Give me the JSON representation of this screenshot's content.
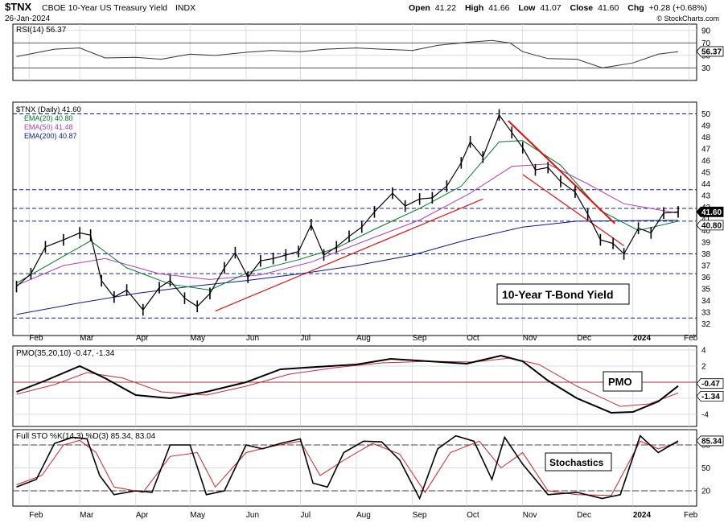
{
  "header": {
    "symbol": "$TNX",
    "name": "CBOE 10-Year US Treasury Yield",
    "exchange": "INDX",
    "date": "26-Jan-2024",
    "open_label": "Open",
    "open": "41.22",
    "high_label": "High",
    "high": "41.66",
    "low_label": "Low",
    "low": "41.07",
    "close_label": "Close",
    "close": "41.60",
    "chg_label": "Chg",
    "chg": "+0.28 (+0.68%)",
    "copyright": "© StockCharts.com"
  },
  "colors": {
    "price": "#000000",
    "ema20": "#007a1f",
    "ema50": "#b040b0",
    "ema200": "#0a1a8a",
    "trend": "#e01010",
    "pmo": "#000000",
    "pmo_signal": "#c0303a",
    "sto_k": "#000000",
    "sto_d": "#d02020",
    "grid": "#c8cfe6"
  },
  "annotations": {
    "main": "10-Year T-Bond Yield",
    "pmo": "PMO",
    "sto": "Stochastics"
  },
  "x_axis": {
    "labels": [
      "Feb",
      "Mar",
      "Apr",
      "May",
      "Jun",
      "Jul",
      "Aug",
      "Sep",
      "Oct",
      "Nov",
      "Dec",
      "2024",
      "Feb"
    ]
  },
  "chart_data": [
    {
      "type": "line",
      "panel": "rsi",
      "legend": "RSI(14) 56.37",
      "value_tag": "56.37",
      "ylim": [
        10,
        100
      ],
      "ticks": [
        90,
        70,
        50,
        30
      ],
      "reference_lines": [
        70,
        30
      ],
      "x": [
        "2023-01-25",
        "2023-02-15",
        "2023-03-01",
        "2023-03-15",
        "2023-04-01",
        "2023-04-15",
        "2023-05-01",
        "2023-05-15",
        "2023-06-01",
        "2023-06-15",
        "2023-07-01",
        "2023-07-15",
        "2023-08-01",
        "2023-08-15",
        "2023-09-01",
        "2023-09-15",
        "2023-10-01",
        "2023-10-15",
        "2023-10-25",
        "2023-11-01",
        "2023-11-15",
        "2023-12-01",
        "2023-12-15",
        "2024-01-01",
        "2024-01-15",
        "2024-01-26"
      ],
      "values": [
        48,
        60,
        62,
        46,
        47,
        44,
        52,
        50,
        55,
        58,
        56,
        60,
        62,
        60,
        58,
        66,
        71,
        74,
        70,
        56,
        45,
        44,
        30,
        38,
        52,
        56
      ]
    },
    {
      "type": "line",
      "panel": "price",
      "legend": [
        "$TNX (Daily) 41.60",
        "EMA(20) 40.80",
        "EMA(50) 41.48",
        "EMA(200) 40.87"
      ],
      "value_tags": [
        "41.60",
        "40.80"
      ],
      "ylim": [
        31,
        51
      ],
      "ticks": [
        50,
        49,
        48,
        47,
        46,
        45,
        44,
        43,
        42,
        41,
        40,
        39,
        38,
        37,
        36,
        35,
        34,
        33,
        32
      ],
      "horizontal_lines": [
        50,
        43.5,
        41.9,
        40.8,
        38,
        36.3,
        32.5
      ],
      "series": [
        {
          "name": "$TNX (Daily) 41.60",
          "x": [
            "2023-01-25",
            "2023-02-02",
            "2023-02-10",
            "2023-02-20",
            "2023-03-01",
            "2023-03-07",
            "2023-03-13",
            "2023-03-20",
            "2023-03-27",
            "2023-04-05",
            "2023-04-14",
            "2023-04-20",
            "2023-04-28",
            "2023-05-05",
            "2023-05-12",
            "2023-05-20",
            "2023-05-26",
            "2023-06-02",
            "2023-06-09",
            "2023-06-16",
            "2023-06-23",
            "2023-06-30",
            "2023-07-07",
            "2023-07-14",
            "2023-07-21",
            "2023-07-28",
            "2023-08-04",
            "2023-08-11",
            "2023-08-21",
            "2023-08-28",
            "2023-09-05",
            "2023-09-12",
            "2023-09-20",
            "2023-09-28",
            "2023-10-03",
            "2023-10-10",
            "2023-10-19",
            "2023-10-26",
            "2023-11-01",
            "2023-11-08",
            "2023-11-15",
            "2023-11-22",
            "2023-11-30",
            "2023-12-07",
            "2023-12-14",
            "2023-12-21",
            "2023-12-27",
            "2024-01-04",
            "2024-01-11",
            "2024-01-18",
            "2024-01-26"
          ],
          "values": [
            35.2,
            36.3,
            38.6,
            39.2,
            39.8,
            39.6,
            35.7,
            34.3,
            34.9,
            33.2,
            35.1,
            35.7,
            34.2,
            33.5,
            34.6,
            36.8,
            38.1,
            36.0,
            37.4,
            37.6,
            37.9,
            38.2,
            40.5,
            37.9,
            38.6,
            39.5,
            40.3,
            41.6,
            43.2,
            42.1,
            42.7,
            42.8,
            43.8,
            45.8,
            47.6,
            46.3,
            49.9,
            48.4,
            47.1,
            45.2,
            45.4,
            44.2,
            43.3,
            41.4,
            39.2,
            38.9,
            38.0,
            40.2,
            39.8,
            41.5,
            41.6
          ]
        },
        {
          "name": "EMA(20) 40.80",
          "x": [
            "2023-01-25",
            "2023-02-20",
            "2023-03-07",
            "2023-03-27",
            "2023-04-20",
            "2023-05-12",
            "2023-06-02",
            "2023-06-30",
            "2023-07-21",
            "2023-08-11",
            "2023-09-05",
            "2023-09-28",
            "2023-10-19",
            "2023-11-01",
            "2023-11-22",
            "2023-12-14",
            "2024-01-04",
            "2024-01-26"
          ],
          "values": [
            35.5,
            37.8,
            39.1,
            36.8,
            35.4,
            34.9,
            36.4,
            37.5,
            38.5,
            40.1,
            41.9,
            43.8,
            47.6,
            47.7,
            45.6,
            41.7,
            40.0,
            40.8
          ]
        },
        {
          "name": "EMA(50) 41.48",
          "x": [
            "2023-01-25",
            "2023-02-20",
            "2023-03-15",
            "2023-04-14",
            "2023-05-12",
            "2023-06-09",
            "2023-07-07",
            "2023-08-04",
            "2023-09-05",
            "2023-10-03",
            "2023-10-26",
            "2023-11-15",
            "2023-12-07",
            "2023-12-27",
            "2024-01-26"
          ],
          "values": [
            35.3,
            37.0,
            37.6,
            36.3,
            35.8,
            36.2,
            37.3,
            39.0,
            40.9,
            43.2,
            45.5,
            45.7,
            44.0,
            42.3,
            41.48
          ]
        },
        {
          "name": "EMA(200) 40.87",
          "x": [
            "2023-01-25",
            "2023-03-01",
            "2023-04-01",
            "2023-05-01",
            "2023-06-01",
            "2023-07-01",
            "2023-08-01",
            "2023-09-01",
            "2023-10-01",
            "2023-11-01",
            "2023-12-01",
            "2024-01-01",
            "2024-01-26"
          ],
          "values": [
            32.8,
            33.8,
            34.6,
            35.2,
            35.7,
            36.3,
            37.0,
            37.9,
            39.2,
            40.3,
            40.8,
            40.85,
            40.87
          ]
        }
      ],
      "trend_lines": [
        {
          "x": [
            "2023-05-15",
            "2023-10-10"
          ],
          "values": [
            33.1,
            42.7
          ]
        },
        {
          "x": [
            "2023-10-24",
            "2023-12-22"
          ],
          "values": [
            49.4,
            40.6
          ]
        },
        {
          "x": [
            "2023-11-01",
            "2023-12-27"
          ],
          "values": [
            44.8,
            38.7
          ]
        }
      ]
    },
    {
      "type": "line",
      "panel": "pmo",
      "legend": "PMO(35,20,10) -0.47, -1.34",
      "value_tags": [
        "-0.47",
        "-1.34"
      ],
      "ylim": [
        -5.5,
        4.5
      ],
      "ticks": [
        4,
        2,
        0,
        -2,
        -4
      ],
      "reference_lines": [
        0
      ],
      "series": [
        {
          "name": "PMO",
          "x": [
            "2023-01-25",
            "2023-02-10",
            "2023-03-01",
            "2023-03-15",
            "2023-04-01",
            "2023-04-20",
            "2023-05-10",
            "2023-06-01",
            "2023-06-20",
            "2023-07-10",
            "2023-08-01",
            "2023-08-20",
            "2023-09-10",
            "2023-10-01",
            "2023-10-20",
            "2023-11-01",
            "2023-11-15",
            "2023-12-01",
            "2023-12-20",
            "2024-01-01",
            "2024-01-15",
            "2024-01-26"
          ],
          "values": [
            -1.2,
            0.2,
            2.0,
            0.5,
            -1.6,
            -2.0,
            -1.2,
            0.0,
            1.6,
            1.9,
            2.2,
            2.9,
            2.6,
            2.3,
            3.3,
            2.6,
            0.2,
            -2.0,
            -3.8,
            -3.7,
            -2.4,
            -0.47
          ]
        },
        {
          "name": "Signal",
          "x": [
            "2023-01-25",
            "2023-02-15",
            "2023-03-05",
            "2023-03-25",
            "2023-04-15",
            "2023-05-10",
            "2023-06-01",
            "2023-06-25",
            "2023-07-20",
            "2023-08-15",
            "2023-09-10",
            "2023-10-05",
            "2023-10-25",
            "2023-11-10",
            "2023-12-01",
            "2023-12-25",
            "2024-01-10",
            "2024-01-26"
          ],
          "values": [
            -1.5,
            -0.3,
            1.2,
            0.5,
            -1.2,
            -1.6,
            -0.5,
            1.0,
            1.8,
            2.4,
            2.6,
            2.5,
            3.0,
            2.2,
            -0.5,
            -3.0,
            -2.7,
            -1.34
          ]
        }
      ]
    },
    {
      "type": "line",
      "panel": "stochastics",
      "legend": "Full STO %K(14,3) %D(3) 85.34, 83.04",
      "value_tag": "85.34",
      "ylim": [
        0,
        100
      ],
      "ticks": [
        80,
        50,
        20
      ],
      "reference_lines": [
        80,
        20
      ],
      "series": [
        {
          "name": "%K",
          "x": [
            "2023-01-25",
            "2023-02-05",
            "2023-02-15",
            "2023-02-25",
            "2023-03-05",
            "2023-03-12",
            "2023-03-20",
            "2023-04-01",
            "2023-04-10",
            "2023-04-20",
            "2023-05-01",
            "2023-05-10",
            "2023-05-20",
            "2023-06-01",
            "2023-06-10",
            "2023-06-20",
            "2023-07-01",
            "2023-07-08",
            "2023-07-16",
            "2023-07-25",
            "2023-08-05",
            "2023-08-15",
            "2023-08-25",
            "2023-09-05",
            "2023-09-15",
            "2023-09-25",
            "2023-10-05",
            "2023-10-15",
            "2023-10-22",
            "2023-11-01",
            "2023-11-15",
            "2023-12-01",
            "2023-12-15",
            "2023-12-25",
            "2024-01-05",
            "2024-01-15",
            "2024-01-26"
          ],
          "values": [
            25,
            35,
            82,
            90,
            88,
            40,
            15,
            20,
            18,
            80,
            80,
            15,
            20,
            80,
            75,
            82,
            88,
            30,
            25,
            70,
            85,
            84,
            60,
            10,
            75,
            92,
            85,
            35,
            90,
            55,
            15,
            18,
            10,
            15,
            92,
            70,
            85.34
          ]
        },
        {
          "name": "%D",
          "x": [
            "2023-01-25",
            "2023-02-08",
            "2023-02-20",
            "2023-03-01",
            "2023-03-10",
            "2023-03-20",
            "2023-04-05",
            "2023-04-20",
            "2023-05-05",
            "2023-05-15",
            "2023-06-01",
            "2023-06-15",
            "2023-07-01",
            "2023-07-12",
            "2023-07-25",
            "2023-08-10",
            "2023-08-25",
            "2023-09-08",
            "2023-09-22",
            "2023-10-08",
            "2023-10-20",
            "2023-11-01",
            "2023-11-15",
            "2023-12-01",
            "2023-12-20",
            "2024-01-05",
            "2024-01-15",
            "2024-01-26"
          ],
          "values": [
            28,
            40,
            80,
            86,
            70,
            25,
            18,
            65,
            70,
            25,
            70,
            78,
            85,
            40,
            60,
            82,
            68,
            18,
            70,
            85,
            50,
            70,
            20,
            15,
            14,
            85,
            75,
            83.04
          ]
        }
      ]
    }
  ]
}
